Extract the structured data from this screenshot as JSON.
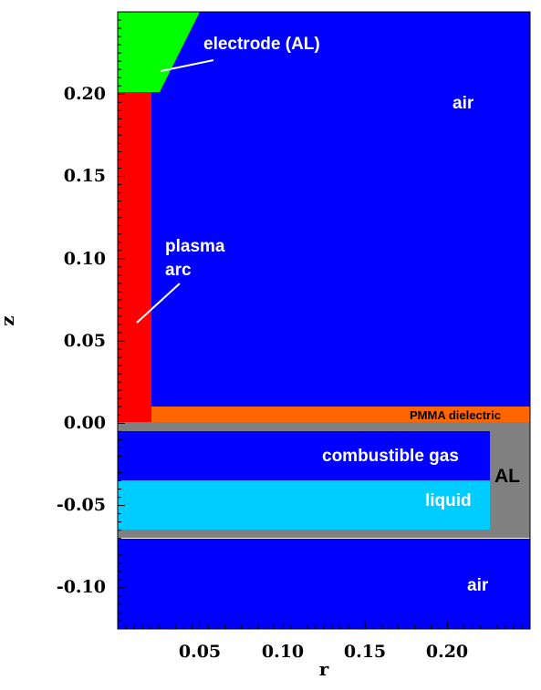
{
  "chart_data": {
    "type": "diagram",
    "xlabel": "r",
    "ylabel": "z",
    "xlim": [
      0,
      0.25
    ],
    "ylim": [
      -0.125,
      0.25
    ],
    "x_ticks": [
      "0.05",
      "0.10",
      "0.15",
      "0.20"
    ],
    "y_ticks": [
      "0.20",
      "0.15",
      "0.10",
      "0.05",
      "0.00",
      "-0.05",
      "-0.10"
    ],
    "labels": {
      "electrode": "electrode (AL)",
      "air_top": "air",
      "plasma_line1": "plasma",
      "plasma_line2": "arc",
      "pmma": "PMMA dielectric",
      "combustible": "combustible gas",
      "al": "AL",
      "liquid": "liquid",
      "air_bottom": "air"
    },
    "colors": {
      "air": "#0000ff",
      "electrode": "#00ff00",
      "plasma": "#ff0000",
      "pmma": "#ff6600",
      "aluminum": "#808080",
      "combustible": "#0000ff",
      "liquid": "#00ccff"
    }
  }
}
